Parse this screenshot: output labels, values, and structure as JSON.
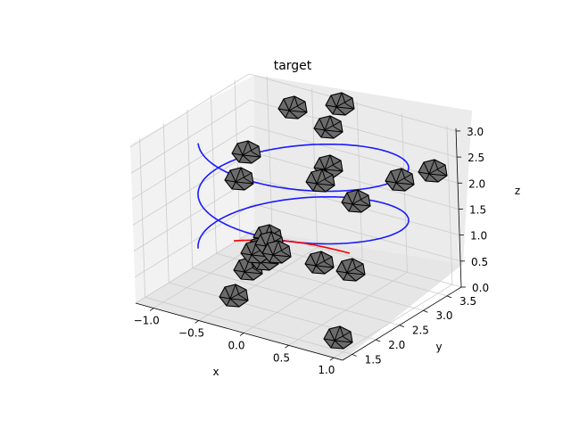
{
  "chart_data": {
    "type": "3d-line-scatter",
    "title": "target",
    "xlabel": "x",
    "ylabel": "y",
    "zlabel": "z",
    "x_ticks": [
      "−1.0",
      "−0.5",
      "0.0",
      "0.5",
      "1.0"
    ],
    "y_ticks": [
      "1.5",
      "2.0",
      "2.5",
      "3.0",
      "3.5"
    ],
    "z_ticks": [
      "0.0",
      "0.5",
      "1.0",
      "1.5",
      "2.0",
      "2.5",
      "3.0"
    ],
    "grid": true,
    "colors": {
      "trajectory": "#1a1aff",
      "target_path": "#ff0000",
      "marker_fill": "#6b6b6b",
      "marker_edge": "#000000",
      "pane_left": "#f2f2f2",
      "pane_right": "#ebebeb",
      "pane_floor": "#e6e6e6",
      "grid": "#cccccc"
    },
    "series": [
      {
        "kind": "helix",
        "turns": 2
      },
      {
        "kind": "arc"
      }
    ],
    "markers_count": 22
  }
}
